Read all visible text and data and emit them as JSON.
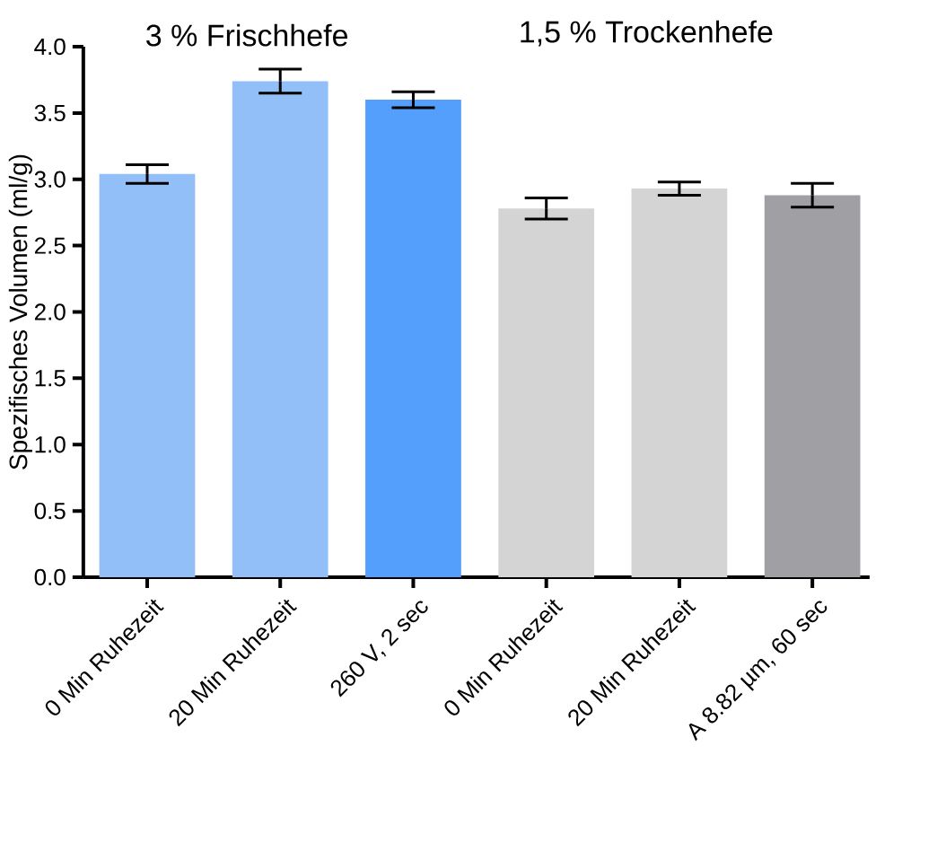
{
  "chart_data": {
    "type": "bar",
    "ylabel": "Spezifisches Volumen (ml/g)",
    "annotations": [
      "3 % Frischhefe",
      "1,5 % Trockenhefe"
    ],
    "categories": [
      "0 Min Ruhezeit",
      "20 Min Ruhezeit",
      "260 V, 2 sec",
      "0 Min Ruhezeit",
      "20 Min Ruhezeit",
      "A 8.82 µm, 60 sec"
    ],
    "values": [
      3.04,
      3.74,
      3.6,
      2.78,
      2.93,
      2.88
    ],
    "errors": [
      0.07,
      0.09,
      0.06,
      0.08,
      0.05,
      0.09
    ],
    "colors": [
      "#92bff8",
      "#92bff8",
      "#549ffb",
      "#d4d4d4",
      "#d4d4d4",
      "#a09fa4"
    ],
    "ylim": [
      0,
      4
    ],
    "yticks": [
      {
        "value": 0,
        "label": "0.0"
      },
      {
        "value": 0.5,
        "label": "0.5"
      },
      {
        "value": 1,
        "label": "1.0"
      },
      {
        "value": 1.5,
        "label": "1.5"
      },
      {
        "value": 2,
        "label": "2.0"
      },
      {
        "value": 2.5,
        "label": "2.5"
      },
      {
        "value": 3,
        "label": "3.0"
      },
      {
        "value": 3.5,
        "label": "3.5"
      },
      {
        "value": 4,
        "label": "4.0"
      }
    ]
  }
}
